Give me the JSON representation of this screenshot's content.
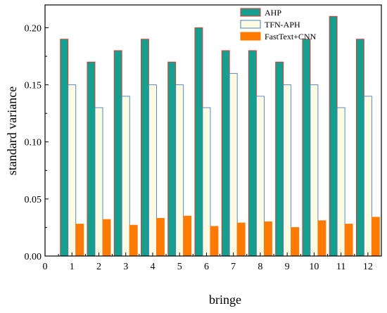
{
  "chart_data": {
    "type": "bar",
    "title": "",
    "xlabel": "bringe",
    "ylabel": "standard variance",
    "categories": [
      "1",
      "2",
      "3",
      "4",
      "5",
      "6",
      "7",
      "8",
      "9",
      "10",
      "11",
      "12"
    ],
    "x_ticks": [
      "0",
      "1",
      "2",
      "3",
      "4",
      "5",
      "6",
      "7",
      "8",
      "9",
      "10",
      "11",
      "12"
    ],
    "xlim": [
      0,
      12.5
    ],
    "ylim": [
      0,
      0.22
    ],
    "y_ticks": [
      "0.00",
      "0.05",
      "0.10",
      "0.15",
      "0.20"
    ],
    "grid": false,
    "legend_position": "top-right",
    "series": [
      {
        "name": "AHP",
        "fill": "#169e8e",
        "stroke": "#e8352a",
        "values": [
          0.19,
          0.17,
          0.18,
          0.19,
          0.17,
          0.2,
          0.18,
          0.18,
          0.17,
          0.19,
          0.21,
          0.19
        ]
      },
      {
        "name": "TFN-APH",
        "fill": "#fdfbe4",
        "stroke": "#4a7fb5",
        "values": [
          0.15,
          0.13,
          0.14,
          0.15,
          0.15,
          0.13,
          0.16,
          0.14,
          0.15,
          0.15,
          0.13,
          0.14
        ]
      },
      {
        "name": "FastText+CNN",
        "fill": "#ff7a00",
        "stroke": "#ff7a00",
        "values": [
          0.028,
          0.032,
          0.027,
          0.033,
          0.035,
          0.026,
          0.029,
          0.03,
          0.025,
          0.031,
          0.028,
          0.034
        ]
      }
    ]
  }
}
